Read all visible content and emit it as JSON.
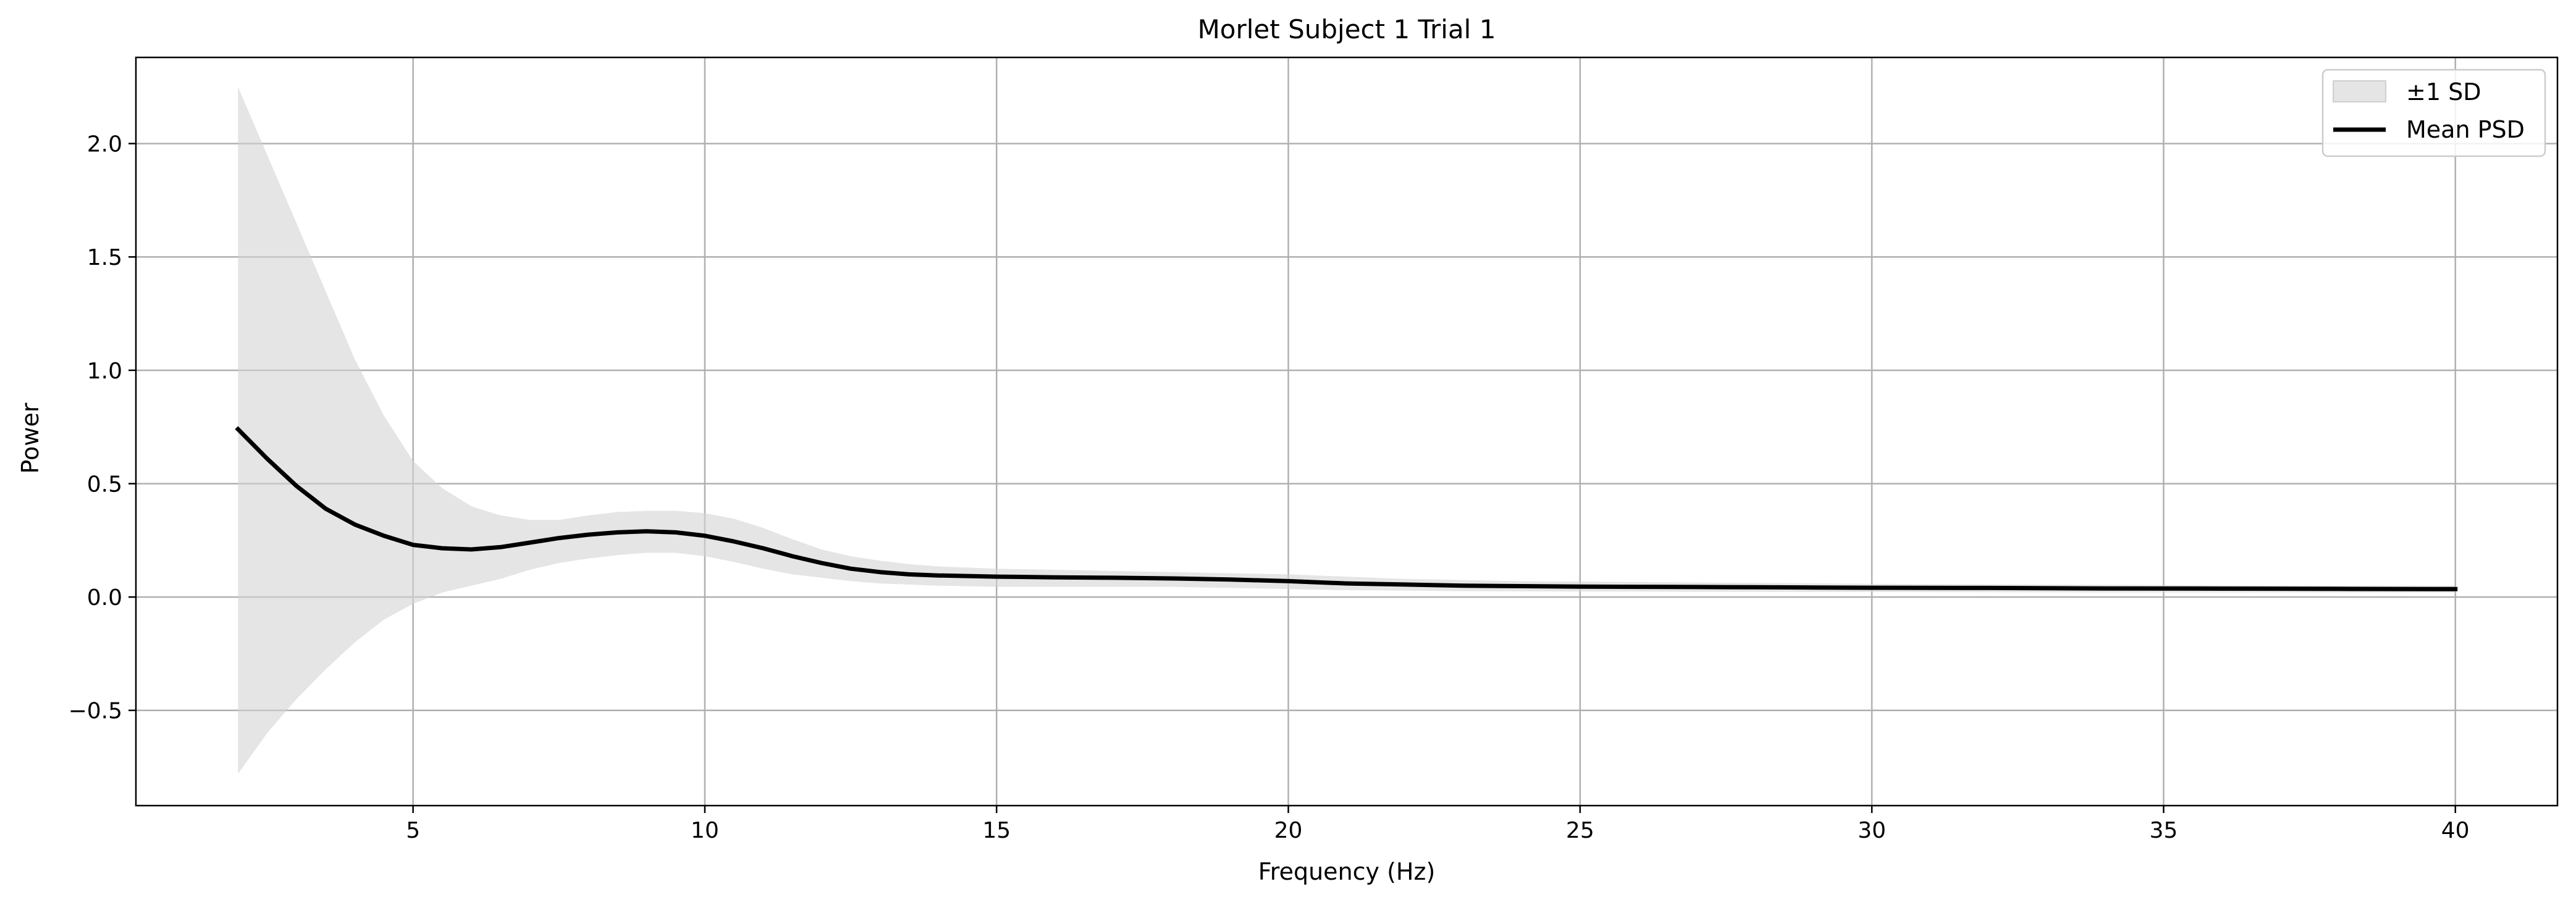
{
  "chart_data": {
    "type": "line",
    "title": "Morlet Subject 1 Trial 1",
    "xlabel": "Frequency (Hz)",
    "ylabel": "Power",
    "xlim": [
      0.25,
      41.75
    ],
    "ylim": [
      -0.92,
      2.38
    ],
    "xticks": [
      5,
      10,
      15,
      20,
      25,
      30,
      35,
      40
    ],
    "yticks": [
      -0.5,
      0.0,
      0.5,
      1.0,
      1.5,
      2.0
    ],
    "xtick_labels": [
      "5",
      "10",
      "15",
      "20",
      "25",
      "30",
      "35",
      "40"
    ],
    "ytick_labels": [
      "−0.5",
      "0.0",
      "0.5",
      "1.0",
      "1.5",
      "2.0"
    ],
    "grid": true,
    "legend_position": "top-right",
    "legend": [
      "±1 SD",
      "Mean PSD"
    ],
    "colors": {
      "mean_line": "#000000",
      "sd_band": "#d3d3d3",
      "grid": "#b0b0b0"
    },
    "x": [
      2,
      2.5,
      3,
      3.5,
      4,
      4.5,
      5,
      5.5,
      6,
      6.5,
      7,
      7.5,
      8,
      8.5,
      9,
      9.5,
      10,
      10.5,
      11,
      11.5,
      12,
      12.5,
      13,
      13.5,
      14,
      15,
      16,
      17,
      18,
      19,
      20,
      21,
      22,
      23,
      24,
      25,
      26,
      27,
      28,
      29,
      30,
      32,
      34,
      36,
      38,
      40
    ],
    "series": [
      {
        "name": "Mean PSD",
        "values": [
          0.74,
          0.61,
          0.49,
          0.39,
          0.32,
          0.27,
          0.23,
          0.215,
          0.21,
          0.22,
          0.24,
          0.26,
          0.275,
          0.285,
          0.29,
          0.285,
          0.27,
          0.245,
          0.215,
          0.18,
          0.15,
          0.125,
          0.11,
          0.1,
          0.095,
          0.09,
          0.087,
          0.085,
          0.082,
          0.077,
          0.07,
          0.06,
          0.055,
          0.05,
          0.048,
          0.046,
          0.045,
          0.044,
          0.043,
          0.042,
          0.041,
          0.04,
          0.038,
          0.037,
          0.036,
          0.035
        ]
      },
      {
        "name": "±1 SD",
        "upper": [
          2.25,
          1.95,
          1.65,
          1.35,
          1.05,
          0.8,
          0.6,
          0.48,
          0.4,
          0.36,
          0.34,
          0.34,
          0.36,
          0.375,
          0.38,
          0.38,
          0.37,
          0.345,
          0.305,
          0.255,
          0.21,
          0.18,
          0.16,
          0.145,
          0.135,
          0.125,
          0.12,
          0.115,
          0.11,
          0.105,
          0.1,
          0.09,
          0.08,
          0.075,
          0.07,
          0.068,
          0.066,
          0.064,
          0.062,
          0.06,
          0.058,
          0.056,
          0.054,
          0.052,
          0.05,
          0.05
        ],
        "lower": [
          -0.78,
          -0.6,
          -0.45,
          -0.32,
          -0.2,
          -0.1,
          -0.03,
          0.02,
          0.05,
          0.08,
          0.12,
          0.15,
          0.17,
          0.185,
          0.195,
          0.195,
          0.18,
          0.155,
          0.125,
          0.1,
          0.085,
          0.07,
          0.06,
          0.055,
          0.05,
          0.045,
          0.045,
          0.045,
          0.045,
          0.04,
          0.035,
          0.03,
          0.028,
          0.026,
          0.025,
          0.024,
          0.024,
          0.023,
          0.023,
          0.022,
          0.022,
          0.021,
          0.02,
          0.02,
          0.02,
          0.02
        ]
      }
    ]
  }
}
